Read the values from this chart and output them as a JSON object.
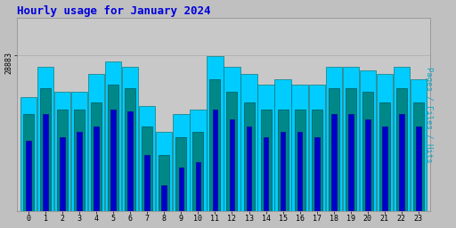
{
  "title": "Hourly usage for January 2024",
  "title_color": "#0000dd",
  "title_fontsize": 9,
  "xlabel_ticks": [
    "0",
    "1",
    "2",
    "3",
    "4",
    "5",
    "6",
    "7",
    "8",
    "9",
    "10",
    "11",
    "12",
    "13",
    "14",
    "15",
    "16",
    "17",
    "18",
    "19",
    "20",
    "21",
    "22",
    "23"
  ],
  "ylabel": "Pages / Files / Hits",
  "ylabel_color": "#00aacc",
  "background_color": "#c0c0c0",
  "plot_bg_color": "#c8c8c8",
  "bar_width": 0.3,
  "ylim": [
    20000,
    31000
  ],
  "yticks": [
    28883
  ],
  "ytick_fontsize": 6,
  "colors": {
    "hits": "#00ccff",
    "files": "#008888",
    "pages": "#0000cc"
  },
  "pages": [
    24000,
    25500,
    24200,
    24500,
    24800,
    25800,
    25700,
    23200,
    21500,
    22500,
    22800,
    25800,
    25200,
    24800,
    24200,
    24500,
    24500,
    24200,
    25500,
    25500,
    25200,
    24800,
    25500,
    24800
  ],
  "files": [
    25500,
    27000,
    25800,
    25800,
    26200,
    27200,
    27000,
    24800,
    23200,
    24200,
    24500,
    27500,
    26800,
    26200,
    25800,
    25800,
    25800,
    25800,
    27000,
    27000,
    26800,
    26200,
    27000,
    26200
  ],
  "hits": [
    26500,
    28200,
    26800,
    26800,
    27800,
    28500,
    28200,
    26000,
    24500,
    25500,
    25800,
    28800,
    28200,
    27800,
    27200,
    27500,
    27200,
    27200,
    28200,
    28200,
    28000,
    27800,
    28200,
    27500
  ]
}
